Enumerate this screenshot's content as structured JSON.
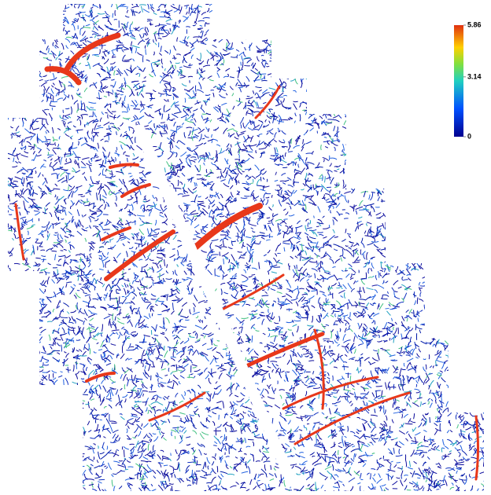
{
  "colorbar": {
    "ticks": [
      0,
      3.14,
      5.86
    ]
  }
}
